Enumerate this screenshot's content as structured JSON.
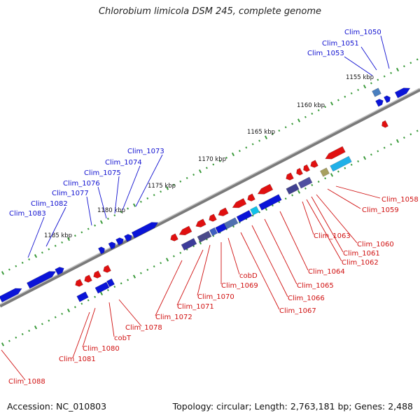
{
  "title": "Chlorobium limicola DSM 245, complete genome",
  "footer": {
    "accession": "Accession: NC_010803",
    "summary": "Topology: circular; Length: 2,763,181 bp; Genes: 2,488"
  },
  "colors": {
    "forward": "#0a14d8",
    "reverse": "#e01010",
    "label_forward": "#1010d0",
    "label_reverse": "#d01010",
    "backbone": "#7a7a7a",
    "dots": "#3a9a3a"
  },
  "ticks": [
    "1155 kbp",
    "1160 kbp",
    "1165 kbp",
    "1170 kbp",
    "1175 kbp",
    "1180 kbp",
    "1185 kbp"
  ],
  "top_labels": [
    "Clim_1050",
    "Clim_1051",
    "Clim_1053",
    "Clim_1073",
    "Clim_1074",
    "Clim_1075",
    "Clim_1076",
    "Clim_1077",
    "Clim_1082",
    "Clim_1083"
  ],
  "bottom_labels": [
    "Clim_1058",
    "Clim_1059",
    "Clim_1060",
    "Clim_1061",
    "Clim_1062",
    "Clim_1063",
    "Clim_1064",
    "Clim_1065",
    "Clim_1066",
    "Clim_1067",
    "cobD",
    "Clim_1069",
    "Clim_1070",
    "Clim_1071",
    "Clim_1072",
    "Clim_1078",
    "cobT",
    "Clim_1080",
    "Clim_1081",
    "Clim_1088"
  ]
}
